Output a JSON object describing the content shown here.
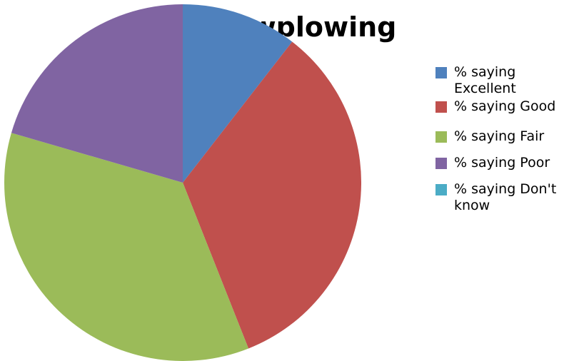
{
  "chart_data": {
    "type": "pie",
    "title": "Snowplowing",
    "categories": [
      "% saying Excellent",
      "% saying Good",
      "% saying Fair",
      "% saying Poor",
      "% saying Don't know"
    ],
    "values": [
      10.5,
      33.5,
      35.5,
      20.5,
      0
    ],
    "colors": [
      "#4F81BD",
      "#C0504D",
      "#9BBB59",
      "#8064A2",
      "#4BACC6"
    ],
    "legend_position": "right"
  }
}
